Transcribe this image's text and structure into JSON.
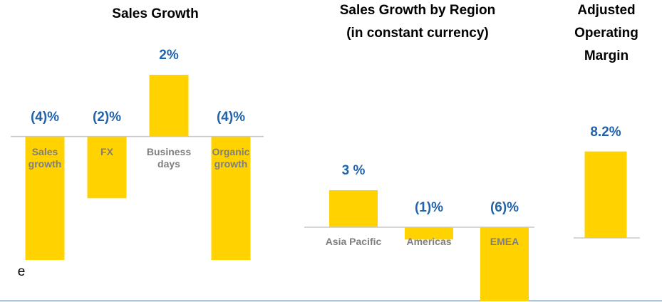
{
  "chart_data": [
    {
      "type": "bar",
      "title": "Sales Growth",
      "categories": [
        "Sales growth",
        "FX",
        "Business days",
        "Organic growth"
      ],
      "values": [
        -4,
        -2,
        2,
        -4
      ],
      "value_labels": [
        "(4)%",
        "(2)%",
        "2%",
        "(4)%"
      ],
      "color": "#ffd200",
      "label_color": "#1f63ad",
      "ylim": [
        -4,
        2
      ],
      "annotation": "e"
    },
    {
      "type": "bar",
      "title": "Sales Growth by Region (in constant currency)",
      "categories": [
        "Asia Pacific",
        "Americas",
        "EMEA"
      ],
      "values": [
        3,
        -1,
        -6
      ],
      "value_labels": [
        "3 %",
        "(1)%",
        "(6)%"
      ],
      "color": "#ffd200",
      "label_color": "#1f63ad",
      "ylim": [
        -6,
        3
      ]
    },
    {
      "type": "bar",
      "title": "Adjusted Operating Margin",
      "categories": [
        null
      ],
      "values": [
        8.2
      ],
      "value_labels": [
        "8.2%"
      ],
      "color": "#ffd200",
      "label_color": "#1f63ad",
      "ylim": [
        0,
        10
      ]
    }
  ]
}
